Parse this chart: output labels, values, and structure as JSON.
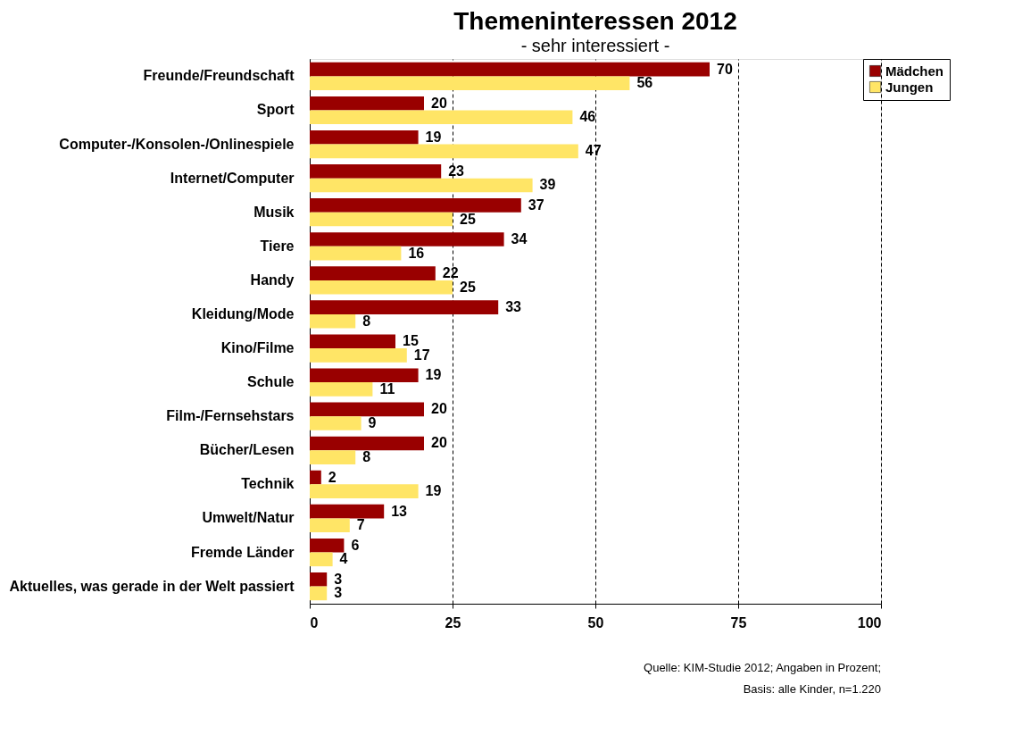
{
  "chart_data": {
    "type": "bar",
    "orientation": "horizontal",
    "title": "Themeninteressen 2012",
    "subtitle": "- sehr interessiert -",
    "categories": [
      "Freunde/Freundschaft",
      "Sport",
      "Computer-/Konsolen-/Onlinespiele",
      "Internet/Computer",
      "Musik",
      "Tiere",
      "Handy",
      "Kleidung/Mode",
      "Kino/Filme",
      "Schule",
      "Film-/Fernsehstars",
      "Bücher/Lesen",
      "Technik",
      "Umwelt/Natur",
      "Fremde Länder",
      "Aktuelles, was gerade in der Welt passiert"
    ],
    "series": [
      {
        "name": "Mädchen",
        "color": "#990000",
        "values": [
          70,
          20,
          19,
          23,
          37,
          34,
          22,
          33,
          15,
          19,
          20,
          20,
          2,
          13,
          6,
          3
        ]
      },
      {
        "name": "Jungen",
        "color": "#ffe566",
        "values": [
          56,
          46,
          47,
          39,
          25,
          16,
          25,
          8,
          17,
          11,
          9,
          8,
          19,
          7,
          4,
          3
        ]
      }
    ],
    "xlim": [
      0,
      100
    ],
    "xticks": [
      0,
      25,
      50,
      75,
      100
    ],
    "grid": "x",
    "legend": "right",
    "data_labels": true,
    "annotations": [
      "Quelle: KIM-Studie 2012; Angaben in Prozent;",
      "Basis: alle Kinder, n=1.220"
    ]
  }
}
